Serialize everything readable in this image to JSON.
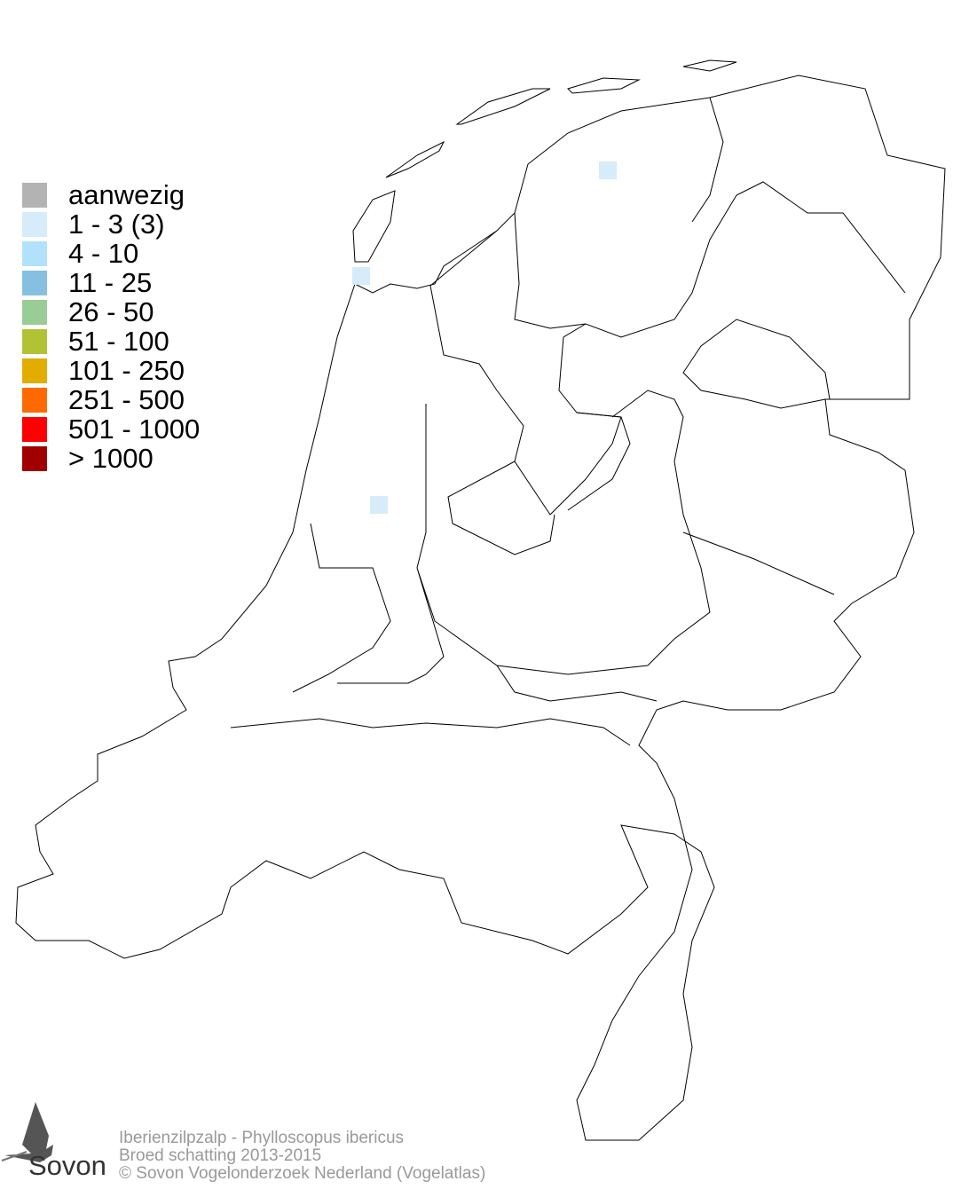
{
  "legend": {
    "items": [
      {
        "label": "aanwezig",
        "color": "#b3b3b3"
      },
      {
        "label": "1 - 3 (3)",
        "color": "#d6ecfa"
      },
      {
        "label": "4 - 10",
        "color": "#b1e1fb"
      },
      {
        "label": "11 - 25",
        "color": "#86c0e0"
      },
      {
        "label": "26 - 50",
        "color": "#9acd95"
      },
      {
        "label": "51 - 100",
        "color": "#b1c234"
      },
      {
        "label": "101 - 250",
        "color": "#e2ac00"
      },
      {
        "label": "251 - 500",
        "color": "#ff6a00"
      },
      {
        "label": "501 - 1000",
        "color": "#ff0000"
      },
      {
        "label": "> 1000",
        "color": "#a00000"
      }
    ]
  },
  "map": {
    "occupied_cell_color": "#d6ecfa",
    "occupied_cells_class": "1 - 3 (3)"
  },
  "footer": {
    "line1": "Iberienzilpzalp - Phylloscopus ibericus",
    "line2": "Broed schatting 2013-2015",
    "line3": "© Sovon Vogelonderzoek Nederland (Vogelatlas)"
  },
  "logo": {
    "text": "Sovon"
  }
}
